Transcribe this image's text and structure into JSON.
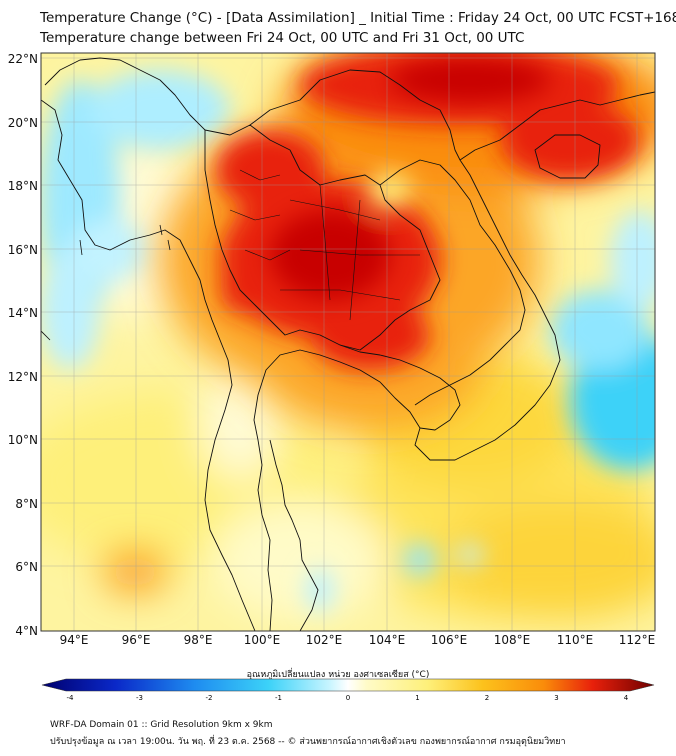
{
  "titles": {
    "line1": "Temperature Change (°C) - [Data Assimilation] _ Initial Time : Friday 24 Oct, 00 UTC FCST+168",
    "line2": "Temperature change between Fri 24 Oct, 00 UTC and Fri 31 Oct, 00 UTC"
  },
  "axes": {
    "lat_labels": [
      "22°N",
      "20°N",
      "18°N",
      "16°N",
      "14°N",
      "12°N",
      "10°N",
      "8°N",
      "6°N",
      "4°N"
    ],
    "lon_labels": [
      "94°E",
      "96°E",
      "98°E",
      "100°E",
      "102°E",
      "104°E",
      "106°E",
      "108°E",
      "110°E",
      "112°E"
    ]
  },
  "colorbar": {
    "title": "อุณหภูมิเปลี่ยนแปลง หน่วย องศาเซลเซียส (°C)",
    "ticks": [
      "-4",
      "-3",
      "-2",
      "-1",
      "0",
      "1",
      "2",
      "3",
      "4"
    ],
    "range": [
      -4,
      4
    ]
  },
  "footer": {
    "line1": "WRF-DA Domain 01 :: Grid Resolution 9km x 9km",
    "line2": "ปรับปรุงข้อมูล ณ เวลา 19:00น. วัน พฤ. ที่ 23 ต.ค. 2568 -- © ส่วนพยากรณ์อากาศเชิงตัวเลข กองพยากรณ์อากาศ กรมอุตุนิยมวิทยา"
  },
  "map_colors": {
    "dark_red": "#c80000",
    "red": "#e8200b",
    "orange": "#fa8c0a",
    "yellow_orange": "#fcc21c",
    "yellow": "#fef07a",
    "pale_yellow": "#fffbc8",
    "light_blue": "#8fe6ff",
    "cyan": "#3cd2f8"
  }
}
